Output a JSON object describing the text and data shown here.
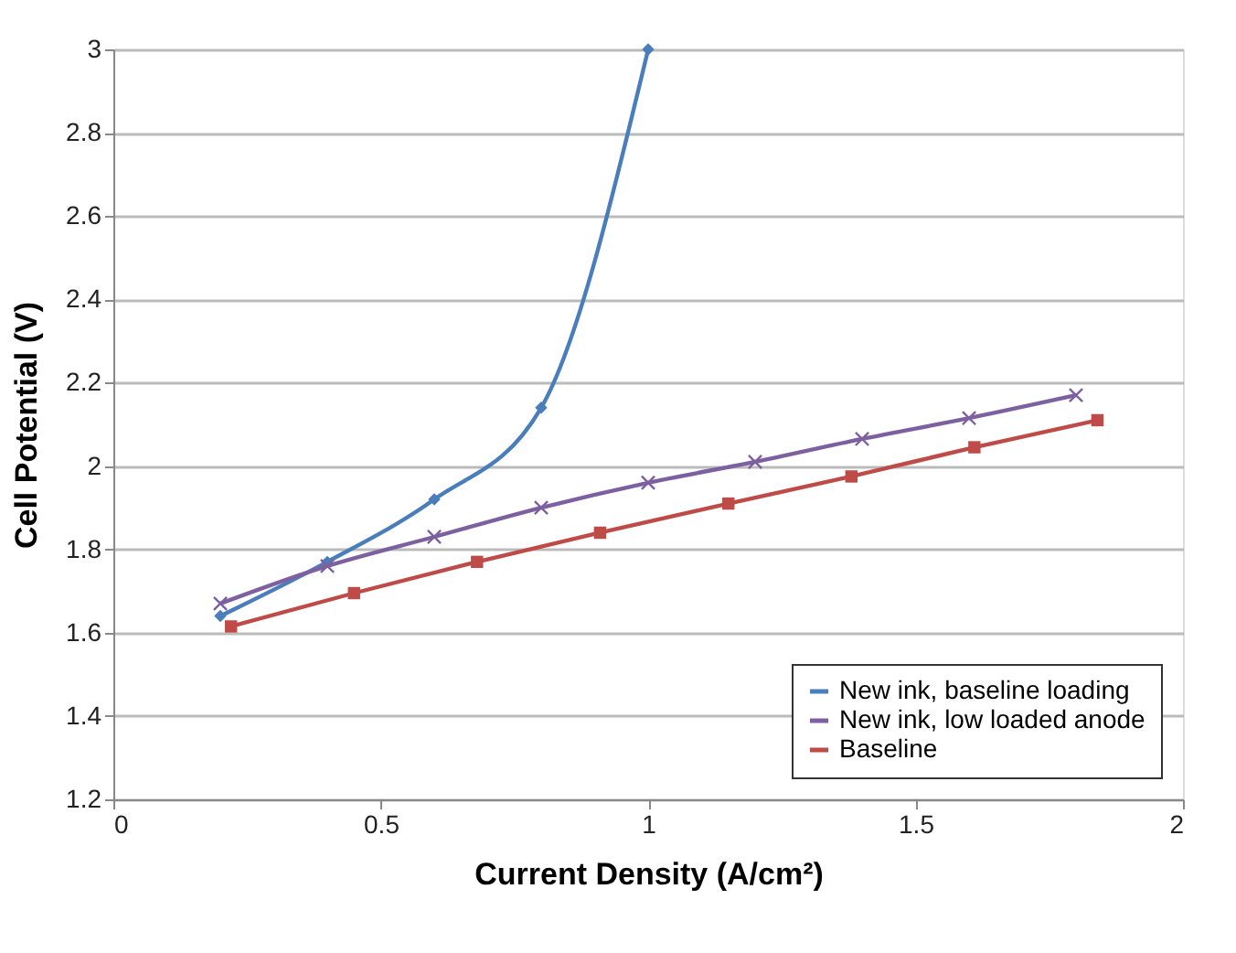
{
  "chart_data": {
    "type": "line",
    "xlabel": "Current Density (A/cm²)",
    "ylabel": "Cell Potential (V)",
    "xlim": [
      0,
      2
    ],
    "xticks": [
      0,
      0.5,
      1,
      1.5,
      2
    ],
    "ylim": [
      1.2,
      3
    ],
    "yticks": [
      1.2,
      1.4,
      1.6,
      1.8,
      2,
      2.2,
      2.4,
      2.6,
      2.8,
      3
    ],
    "grid": "y",
    "legend": "bottom right",
    "series": [
      {
        "name": "New ink, baseline loading",
        "color": "#4a7ebb",
        "marker": "diamond",
        "x": [
          0.2,
          0.4,
          0.6,
          0.8,
          1.0
        ],
        "values": [
          1.64,
          1.77,
          1.92,
          2.14,
          3.0
        ]
      },
      {
        "name": "New ink, low loaded anode",
        "color": "#7d60a0",
        "marker": "cross",
        "x": [
          0.2,
          0.4,
          0.6,
          0.8,
          1.0,
          1.2,
          1.4,
          1.6,
          1.8
        ],
        "values": [
          1.67,
          1.76,
          1.83,
          1.9,
          1.96,
          2.01,
          2.065,
          2.115,
          2.17
        ]
      },
      {
        "name": "Baseline",
        "color": "#be4b48",
        "marker": "square",
        "x": [
          0.22,
          0.45,
          0.68,
          0.91,
          1.15,
          1.38,
          1.61,
          1.84
        ],
        "values": [
          1.615,
          1.695,
          1.77,
          1.84,
          1.91,
          1.975,
          2.045,
          2.11
        ]
      }
    ]
  }
}
